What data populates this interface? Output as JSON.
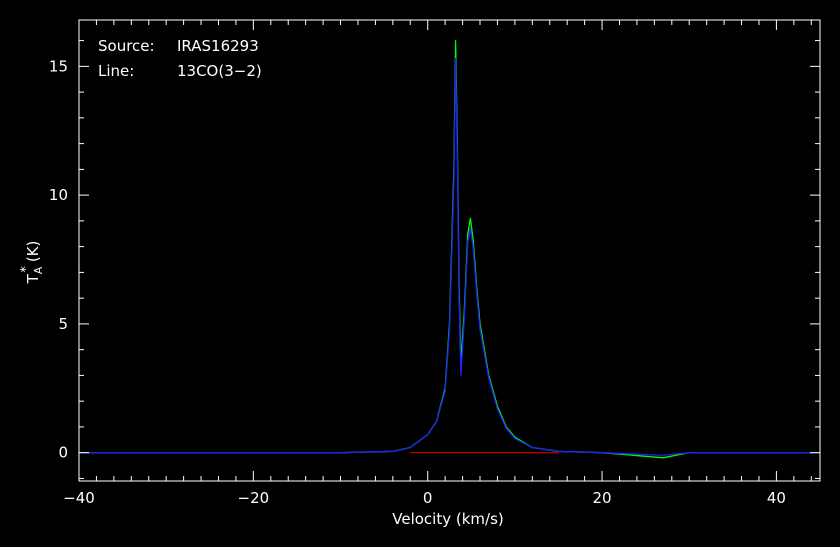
{
  "chart_data": {
    "type": "line",
    "xlabel": "Velocity (km/s)",
    "ylabel_main": "T",
    "ylabel_sub": "A",
    "ylabel_sup": "*",
    "ylabel_unit": "(K)",
    "xlim": [
      -40,
      45
    ],
    "ylim": [
      -1.1,
      16.8
    ],
    "xticks": [
      -40,
      -20,
      0,
      20,
      40
    ],
    "yticks": [
      0,
      5,
      10,
      15
    ],
    "xtick_labels": [
      "−40",
      "−20",
      "0",
      "20",
      "40"
    ],
    "ytick_labels": [
      "0",
      "5",
      "10",
      "15"
    ],
    "grid": false,
    "annotations": {
      "source_label": "Source:",
      "source_value": "IRAS16293",
      "line_label": "Line:",
      "line_value": "13CO(3−2)"
    },
    "colors": {
      "background": "#000000",
      "axes": "#ffffff",
      "green_series": "#00ff00",
      "blue_series": "#2020ff",
      "baseline": "#cc0000"
    },
    "series": [
      {
        "color": "green",
        "x": [
          -40,
          -30,
          -20,
          -10,
          -4,
          -2,
          0,
          1,
          2,
          2.5,
          3.0,
          3.2,
          3.4,
          3.6,
          3.8,
          4.2,
          4.6,
          4.9,
          5.2,
          5.6,
          6,
          7,
          8,
          9,
          10,
          12,
          15,
          20,
          27,
          30,
          40,
          45
        ],
        "y": [
          0.0,
          0.0,
          0.0,
          0.0,
          0.05,
          0.2,
          0.7,
          1.2,
          2.5,
          5.0,
          11.0,
          16.0,
          12.0,
          6.5,
          3.5,
          5.5,
          8.5,
          9.1,
          8.3,
          6.5,
          5.0,
          3.0,
          1.8,
          1.0,
          0.6,
          0.2,
          0.05,
          0.0,
          -0.2,
          0.0,
          0.0,
          0.0
        ]
      },
      {
        "color": "blue",
        "x": [
          -40,
          -30,
          -20,
          -10,
          -4,
          -2,
          0,
          1,
          2,
          2.5,
          3.0,
          3.2,
          3.4,
          3.6,
          3.8,
          4.2,
          4.6,
          4.9,
          5.2,
          5.6,
          6,
          7,
          8,
          9,
          10,
          12,
          15,
          20,
          27,
          30,
          40,
          45
        ],
        "y": [
          0.0,
          0.0,
          0.0,
          0.0,
          0.05,
          0.2,
          0.7,
          1.2,
          2.4,
          4.8,
          10.5,
          15.3,
          11.5,
          6.0,
          3.0,
          5.2,
          8.2,
          8.7,
          8.0,
          6.3,
          4.8,
          2.9,
          1.7,
          0.95,
          0.55,
          0.2,
          0.05,
          0.0,
          -0.1,
          0.0,
          0.0,
          0.0
        ]
      },
      {
        "color": "red",
        "x": [
          -2,
          15
        ],
        "y": [
          0.0,
          0.0
        ]
      }
    ]
  }
}
